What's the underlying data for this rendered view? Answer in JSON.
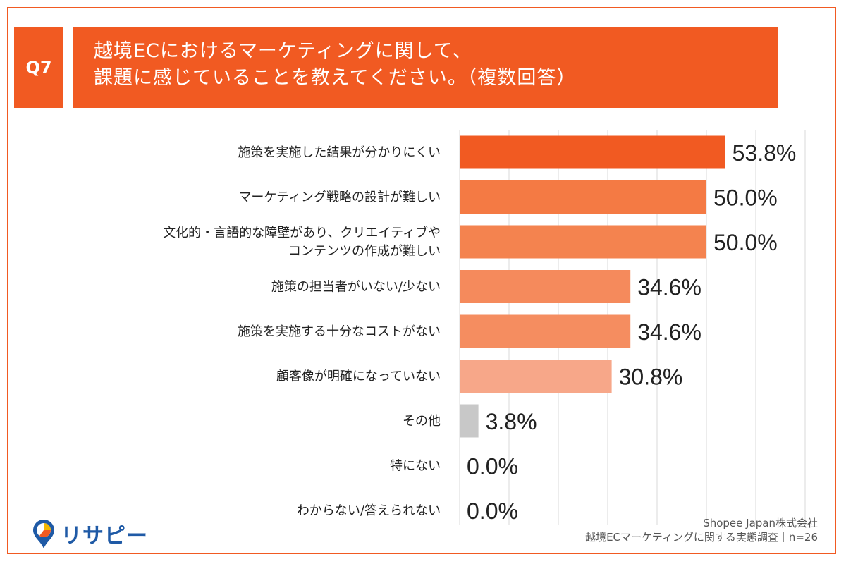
{
  "question": {
    "badge": "Q7",
    "title_line1": "越境ECにおけるマーケティングに関して、",
    "title_line2": "課題に感じていることを教えてください。（複数回答）"
  },
  "chart_data": {
    "type": "bar",
    "orientation": "horizontal",
    "categories": [
      "施策を実施した結果が分かりにくい",
      "マーケティング戦略の設計が難しい",
      "文化的・言語的な障壁があり、クリエイティブや\nコンテンツの作成が難しい",
      "施策の担当者がいない/少ない",
      "施策を実施する十分なコストがない",
      "顧客像が明確になっていない",
      "その他",
      "特にない",
      "わからない/答えられない"
    ],
    "values": [
      53.8,
      50.0,
      50.0,
      34.6,
      34.6,
      30.8,
      3.8,
      0.0,
      0.0
    ],
    "value_labels": [
      "53.8%",
      "50.0%",
      "50.0%",
      "34.6%",
      "34.6%",
      "30.8%",
      "3.8%",
      "0.0%",
      "0.0%"
    ],
    "colors": [
      "#f15a22",
      "#f47a44",
      "#f4834f",
      "#f58a5c",
      "#f58d60",
      "#f7a789",
      "#c8c8c8",
      "#c8c8c8",
      "#c8c8c8"
    ],
    "xlim": [
      0,
      70
    ],
    "grid": true
  },
  "footer": {
    "company": "Shopee Japan株式会社",
    "survey": "越境ECマーケティングに関する実態調査｜n=26"
  },
  "logo": {
    "text": "リサピー"
  }
}
